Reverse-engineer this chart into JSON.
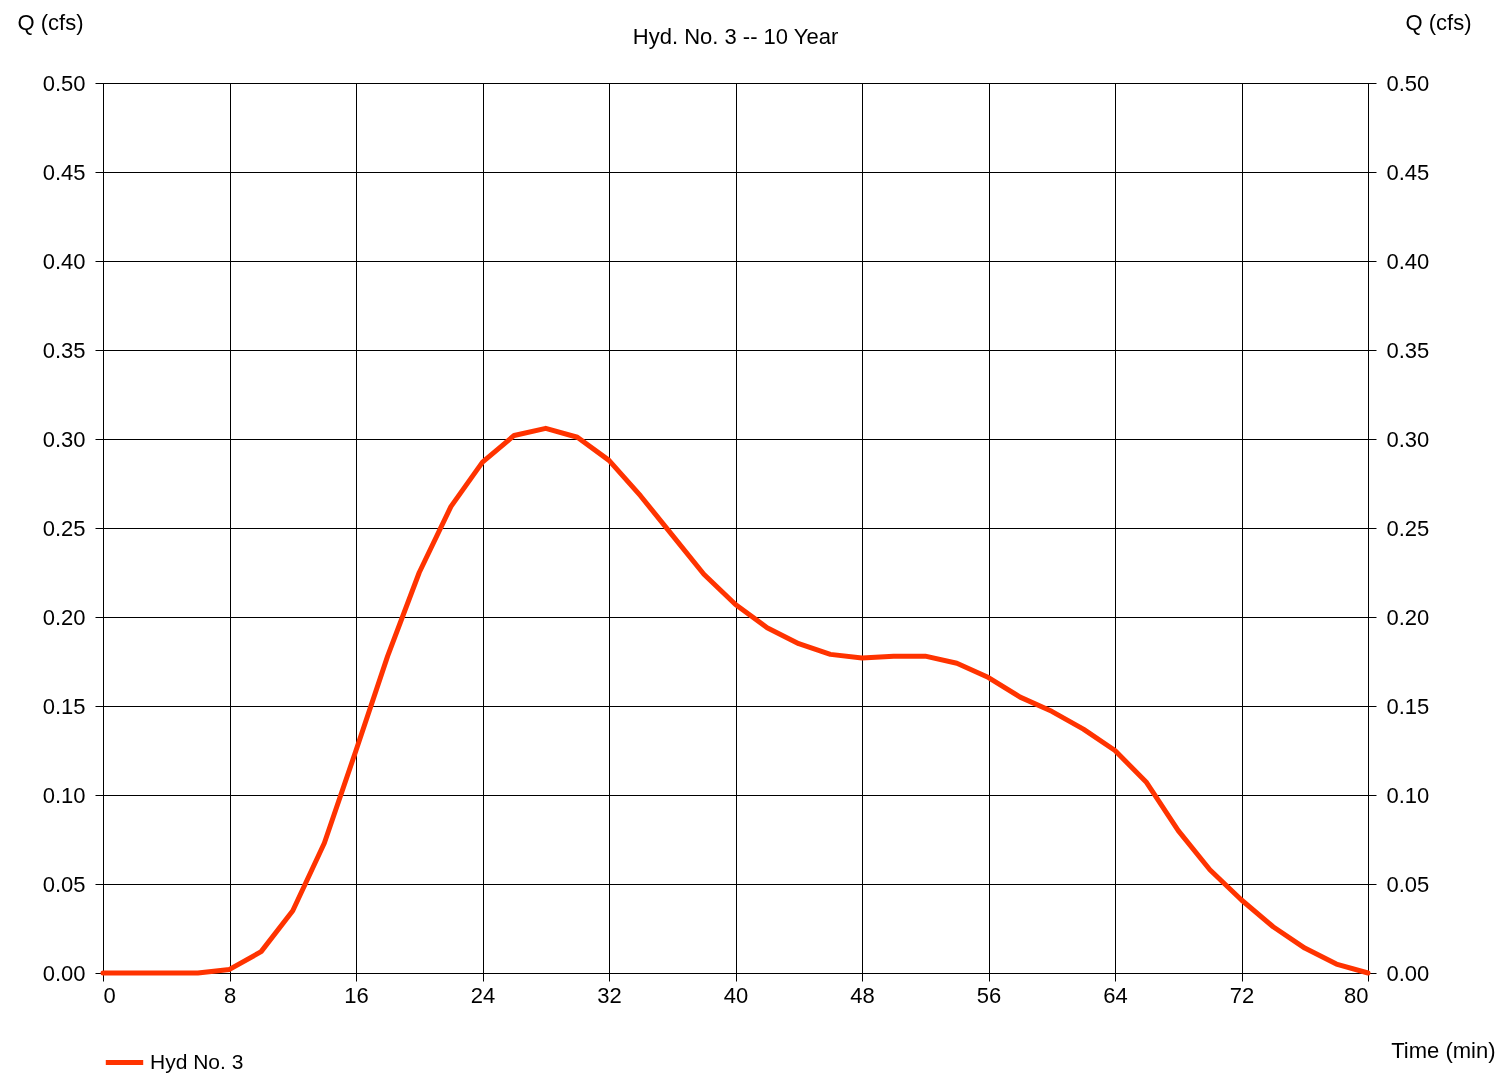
{
  "chart_data": {
    "type": "line",
    "title": "Hyd. No. 3 -- 10 Year",
    "xlabel": "Time (min)",
    "ylabel": "Q (cfs)",
    "y2label": "Q (cfs)",
    "x": [
      0,
      2,
      4,
      6,
      8,
      10,
      12,
      14,
      16,
      18,
      20,
      22,
      24,
      26,
      28,
      30,
      32,
      34,
      36,
      38,
      40,
      42,
      44,
      46,
      48,
      50,
      52,
      54,
      56,
      58,
      60,
      62,
      64,
      66,
      68,
      70,
      72,
      74,
      76,
      78,
      80
    ],
    "series": [
      {
        "name": "Hyd No. 3",
        "color": "#ff3300",
        "values": [
          0,
          0,
          0,
          0,
          0.002,
          0.012,
          0.035,
          0.073,
          0.125,
          0.178,
          0.225,
          0.262,
          0.287,
          0.302,
          0.306,
          0.301,
          0.288,
          0.268,
          0.246,
          0.224,
          0.207,
          0.194,
          0.185,
          0.179,
          0.177,
          0.178,
          0.178,
          0.174,
          0.166,
          0.155,
          0.147,
          0.137,
          0.125,
          0.107,
          0.08,
          0.058,
          0.041,
          0.026,
          0.014,
          0.005,
          0
        ]
      }
    ],
    "xlim": [
      0,
      80
    ],
    "xticks": [
      0,
      8,
      16,
      24,
      32,
      40,
      48,
      56,
      64,
      72,
      80
    ],
    "ylim": [
      0,
      0.5
    ],
    "yticks": [
      {
        "value": 0,
        "label": "0.00"
      },
      0.05,
      {
        "value": 0.1,
        "label": "0.10"
      },
      0.15,
      {
        "value": 0.2,
        "label": "0.20"
      },
      0.25,
      {
        "value": 0.3,
        "label": "0.30"
      },
      0.35,
      {
        "value": 0.4,
        "label": "0.40"
      },
      0.45,
      {
        "value": 0.5,
        "label": "0.50"
      }
    ],
    "y2lim": [
      0,
      0.5
    ],
    "y2ticks": [
      {
        "value": 0,
        "label": "0.00"
      },
      0.05,
      {
        "value": 0.1,
        "label": "0.10"
      },
      0.15,
      {
        "value": 0.2,
        "label": "0.20"
      },
      0.25,
      {
        "value": 0.3,
        "label": "0.30"
      },
      0.35,
      {
        "value": 0.4,
        "label": "0.40"
      },
      0.45,
      {
        "value": 0.5,
        "label": "0.50"
      }
    ],
    "grid": true,
    "legend": "bottom left",
    "line_style": "solid",
    "marker": "none"
  }
}
